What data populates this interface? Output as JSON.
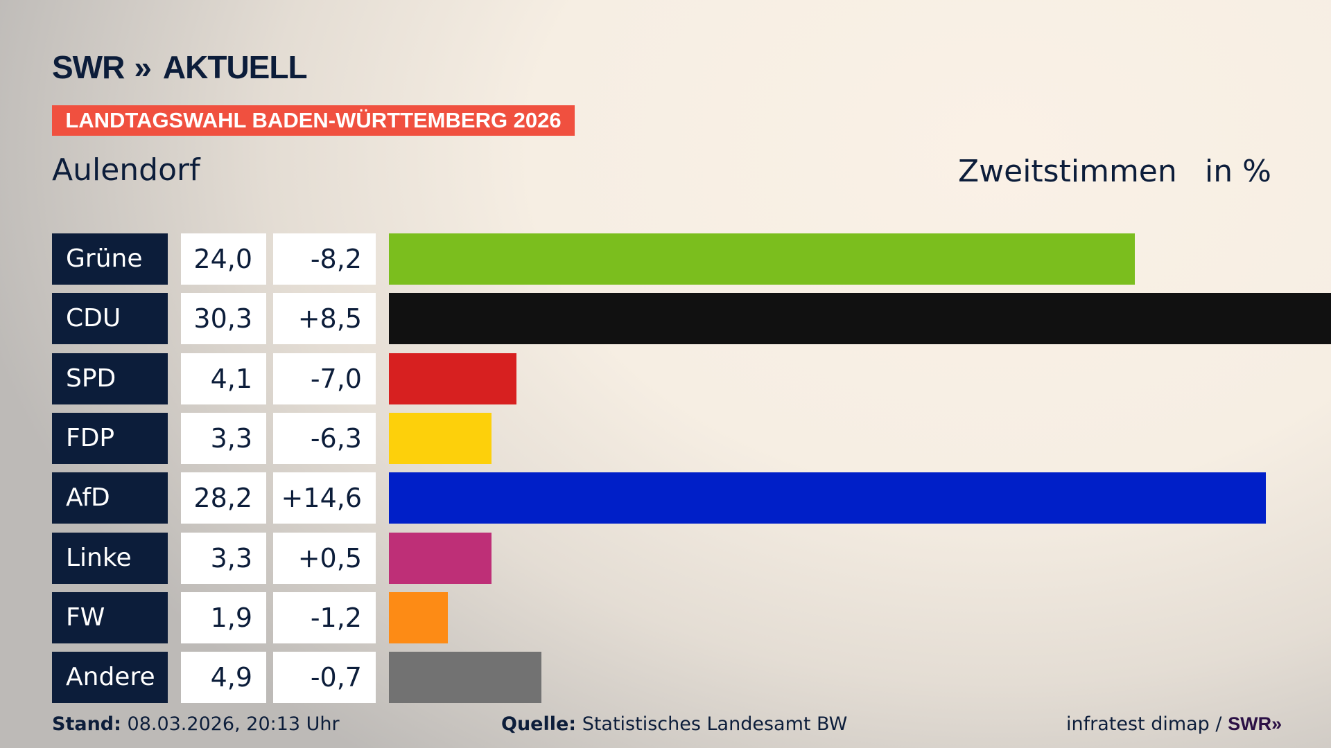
{
  "header": {
    "logo": "SWR AKTUELL",
    "logo_swr": "SWR",
    "logo_chevrons": "»",
    "logo_aktuell": "AKTUELL",
    "banner": "LANDTAGSWAHL BADEN-WÜRTTEMBERG 2026",
    "place": "Aulendorf",
    "metric": "Zweitstimmen",
    "unit": "in %"
  },
  "chart_data": {
    "type": "bar",
    "orientation": "horizontal",
    "categories": [
      "Grüne",
      "CDU",
      "SPD",
      "FDP",
      "AfD",
      "Linke",
      "FW",
      "Andere"
    ],
    "values": [
      24.0,
      30.3,
      4.1,
      3.3,
      28.2,
      3.3,
      1.9,
      4.9
    ],
    "value_labels": [
      "24,0",
      "30,3",
      "4,1",
      "3,3",
      "28,2",
      "3,3",
      "1,9",
      "4,9"
    ],
    "change_labels": [
      "-8,2",
      "+8,5",
      "-7,0",
      "-6,3",
      "+14,6",
      "+0,5",
      "-1,2",
      "-0,7"
    ],
    "changes": [
      -8.2,
      8.5,
      -7.0,
      -6.3,
      14.6,
      0.5,
      -1.2,
      -0.7
    ],
    "colors": [
      "#7bbe1e",
      "#111111",
      "#d72020",
      "#fdd00b",
      "#001fc8",
      "#be2f77",
      "#fd8b15",
      "#727272"
    ],
    "xlim": [
      0,
      30.3
    ]
  },
  "footer": {
    "stand_label": "Stand:",
    "stand_value": "08.03.2026, 20:13 Uhr",
    "quelle_label": "Quelle:",
    "quelle_value": "Statistisches Landesamt BW",
    "credit": "infratest dimap /",
    "credit_logo": "SWR»"
  }
}
